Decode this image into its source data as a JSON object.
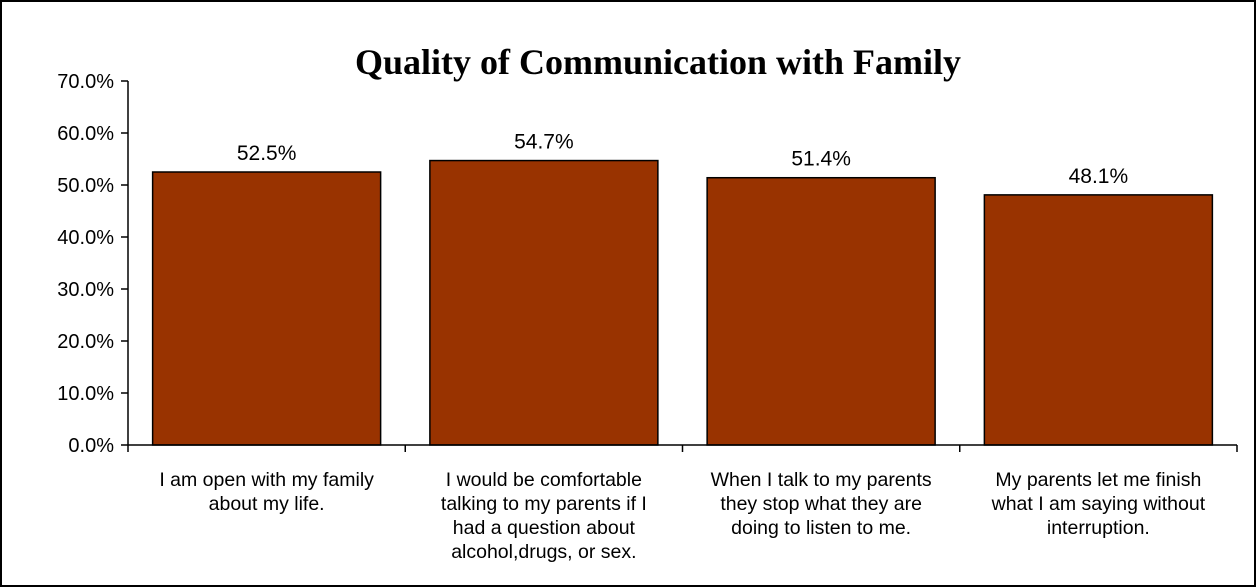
{
  "chart_data": {
    "type": "bar",
    "title": "Quality of Communication with Family",
    "xlabel": "",
    "ylabel": "",
    "ylim": [
      0,
      70
    ],
    "yticks": [
      0,
      10,
      20,
      30,
      40,
      50,
      60,
      70
    ],
    "ytick_labels": [
      "0.0%",
      "10.0%",
      "20.0%",
      "30.0%",
      "40.0%",
      "50.0%",
      "60.0%",
      "70.0%"
    ],
    "grid": false,
    "legend": "none",
    "bar_color": "#993300",
    "categories": [
      [
        "I am open with my family",
        "about my life."
      ],
      [
        "I would be comfortable",
        "talking to my parents if I",
        "had a question about",
        "alcohol,drugs, or sex."
      ],
      [
        "When I talk to my parents",
        "they stop what they are",
        "doing to listen to me."
      ],
      [
        "My parents let me finish",
        "what I am saying without",
        "interruption."
      ]
    ],
    "values": [
      52.5,
      54.7,
      51.4,
      48.1
    ],
    "data_labels": [
      "52.5%",
      "54.7%",
      "51.4%",
      "48.1%"
    ]
  }
}
